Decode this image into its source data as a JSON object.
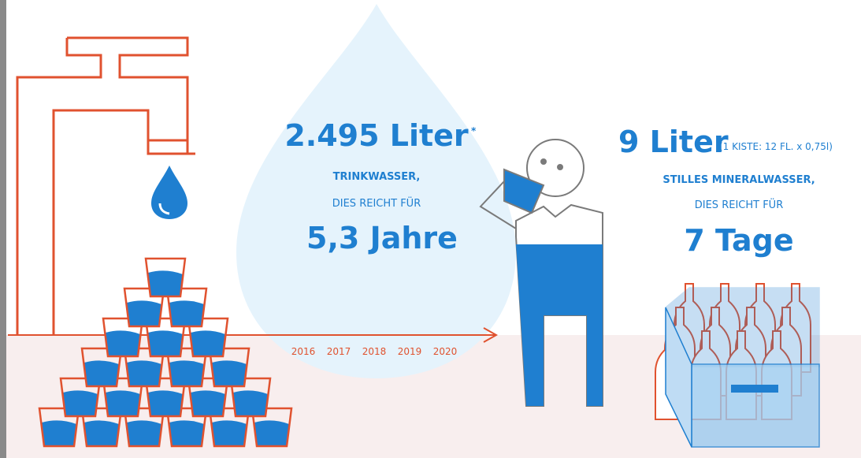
{
  "left": {
    "amount": "2.495 Liter",
    "footnote_mark": "*",
    "line1": "TRINKWASSER,",
    "line2": "DIES REICHT FÜR",
    "result": "5,3 Jahre"
  },
  "timeline": [
    "2016",
    "2017",
    "2018",
    "2019",
    "2020"
  ],
  "right": {
    "amount": "9 Liter",
    "note": "(1 KISTE: 12 FL. x 0,75l)",
    "line1": "STILLES MINERALWASSER,",
    "line2": "DIES REICHT FÜR",
    "result": "7 Tage"
  }
}
